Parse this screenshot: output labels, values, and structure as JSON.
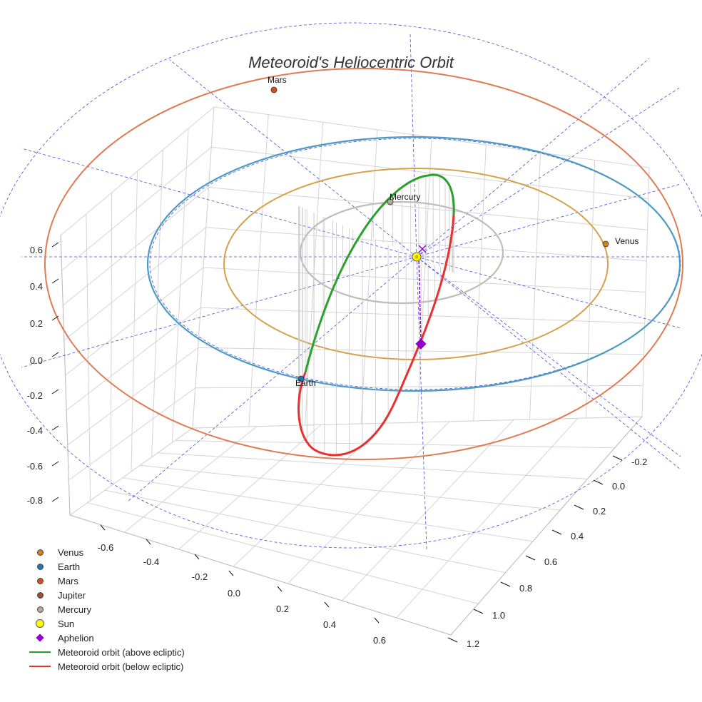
{
  "chart_data": {
    "type": "scatter",
    "title": "Meteoroid's Heliocentric Orbit",
    "x_axis_ticks": [
      "-0.6",
      "-0.4",
      "-0.2",
      "0.0",
      "0.2",
      "0.4",
      "0.6"
    ],
    "y_axis_ticks": [
      "-0.2",
      "0.0",
      "0.2",
      "0.4",
      "0.6",
      "0.8",
      "1.0",
      "1.2"
    ],
    "z_axis_ticks": [
      "0.6",
      "0.4",
      "0.2",
      "0.0",
      "-0.2",
      "-0.4",
      "-0.6",
      "-0.8"
    ],
    "planets": [
      {
        "name": "Venus",
        "label": "Venus",
        "color": "#d4811a"
      },
      {
        "name": "Earth",
        "label": "Earth",
        "color": "#1f77b4"
      },
      {
        "name": "Mars",
        "label": "Mars",
        "color": "#d4501e"
      },
      {
        "name": "Mercury",
        "label": "Mercury",
        "color": "#b0aaa4"
      }
    ],
    "orbit_colors": {
      "mercury": "#c0bcb8",
      "venus": "#d4a24a",
      "earth": "#4a9ac4",
      "mars": "#e07a52",
      "guide": "#4a4adc"
    },
    "legend": [
      {
        "label": "Venus",
        "symbol": "dot",
        "color": "#d4811a"
      },
      {
        "label": "Earth",
        "symbol": "dot",
        "color": "#1f77b4"
      },
      {
        "label": "Mars",
        "symbol": "dot",
        "color": "#d4501e"
      },
      {
        "label": "Jupiter",
        "symbol": "dot",
        "color": "#a0522d"
      },
      {
        "label": "Mercury",
        "symbol": "dot",
        "color": "#bba9a0"
      },
      {
        "label": "Sun",
        "symbol": "bigdot",
        "color": "#ffff00"
      },
      {
        "label": "Aphelion",
        "symbol": "diamond",
        "color": "#9400d3"
      },
      {
        "label": "Meteoroid orbit (above ecliptic)",
        "symbol": "line",
        "color": "#2ca02c"
      },
      {
        "label": "Meteoroid orbit (below ecliptic)",
        "symbol": "line",
        "color": "#e83030"
      }
    ]
  }
}
